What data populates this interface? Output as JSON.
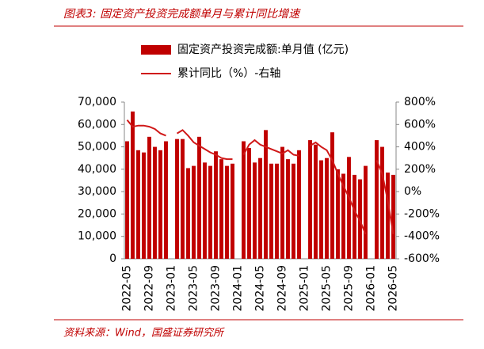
{
  "chart_data": {
    "type": "bar",
    "title": "图表3:  固定资产投资完成额单月与累计同比增速",
    "source": "资料来源：Wind，国盛证券研究所",
    "categories": [
      "2022-05",
      null,
      null,
      null,
      "2022-09",
      null,
      null,
      null,
      "2023-01",
      null,
      null,
      null,
      "2023-05",
      null,
      null,
      null,
      "2023-09",
      null,
      null,
      null,
      "2024-01",
      null,
      null,
      null,
      "2024-05",
      null,
      null,
      null,
      "2024-09",
      null,
      null,
      null,
      "2025-01",
      null,
      null,
      null,
      "2025-05",
      null,
      null,
      null,
      "2025-09",
      null,
      null,
      null,
      "2026-01",
      null,
      null,
      null,
      "2026-05"
    ],
    "series": [
      {
        "name": "固定资产投资完成额:单月值 (亿元)",
        "type": "bar",
        "color": "#c00000",
        "values": [
          52500,
          65800,
          48500,
          47500,
          54500,
          50000,
          48500,
          52500,
          null,
          53500,
          53500,
          40500,
          41500,
          54500,
          43000,
          41500,
          48000,
          44500,
          41500,
          42500,
          null,
          52500,
          49500,
          43000,
          45000,
          57500,
          42500,
          42500,
          50000,
          44500,
          42500,
          48500,
          null,
          53000,
          51000,
          44000,
          45000,
          56500,
          40000,
          38000,
          45500,
          37500,
          35500,
          41500,
          null,
          53000,
          50000,
          38500,
          37500
        ]
      },
      {
        "name": "累计同比（%）-右轴",
        "type": "line",
        "axis": "y2",
        "color": "#d01818",
        "values": [
          640,
          580,
          590,
          590,
          580,
          560,
          520,
          500,
          null,
          520,
          550,
          500,
          440,
          410,
          380,
          350,
          330,
          300,
          290,
          290,
          null,
          330,
          420,
          460,
          420,
          400,
          380,
          360,
          340,
          370,
          330,
          320,
          null,
          410,
          440,
          400,
          370,
          280,
          160,
          50,
          -50,
          -170,
          -260,
          -380,
          null,
          280,
          160,
          -80,
          -380
        ]
      }
    ],
    "ylim": [
      0,
      70000
    ],
    "yticks": [
      0,
      {
        "value": 10000,
        "label": "10,000"
      },
      {
        "value": 20000,
        "label": "20,000"
      },
      {
        "value": 30000,
        "label": "30,000"
      },
      {
        "value": 40000,
        "label": "40,000"
      },
      {
        "value": 50000,
        "label": "50,000"
      },
      {
        "value": 60000,
        "label": "60,000"
      },
      {
        "value": 70000,
        "label": "70,000"
      }
    ],
    "y2lim": [
      -600,
      800
    ],
    "y2ticks": [
      {
        "value": -600,
        "label": "-600%"
      },
      {
        "value": -400,
        "label": "-400%"
      },
      {
        "value": -200,
        "label": "-200%"
      },
      {
        "value": 0,
        "label": "0%"
      },
      {
        "value": 200,
        "label": "200%"
      },
      {
        "value": 400,
        "label": "400%"
      },
      {
        "value": 600,
        "label": "600%"
      },
      {
        "value": 800,
        "label": "800%"
      }
    ],
    "grid": false
  }
}
